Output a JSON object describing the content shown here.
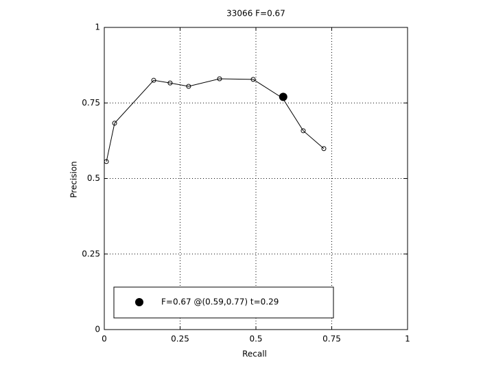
{
  "chart_data": {
    "type": "line",
    "title": "33066 F=0.67",
    "xlabel": "Recall",
    "ylabel": "Precision",
    "xlim": [
      0,
      1
    ],
    "ylim": [
      0,
      1
    ],
    "xticks": [
      0,
      0.25,
      0.5,
      0.75,
      1
    ],
    "yticks": [
      0,
      0.25,
      0.5,
      0.75,
      1
    ],
    "grid": true,
    "legend": "lower left",
    "series": [
      {
        "color": "#000000",
        "marker": "open-circle",
        "x": [
          0.007,
          0.034,
          0.163,
          0.217,
          0.278,
          0.38,
          0.491,
          0.588,
          0.656,
          0.724
        ],
        "values": [
          0.556,
          0.683,
          0.825,
          0.816,
          0.805,
          0.83,
          0.828,
          0.766,
          0.658,
          0.599
        ]
      },
      {
        "name": "F=0.67 @(0.59,0.77) t=0.29",
        "color": "#000000",
        "marker": "filled-circle",
        "x": [
          0.59
        ],
        "values": [
          0.77
        ]
      }
    ]
  }
}
